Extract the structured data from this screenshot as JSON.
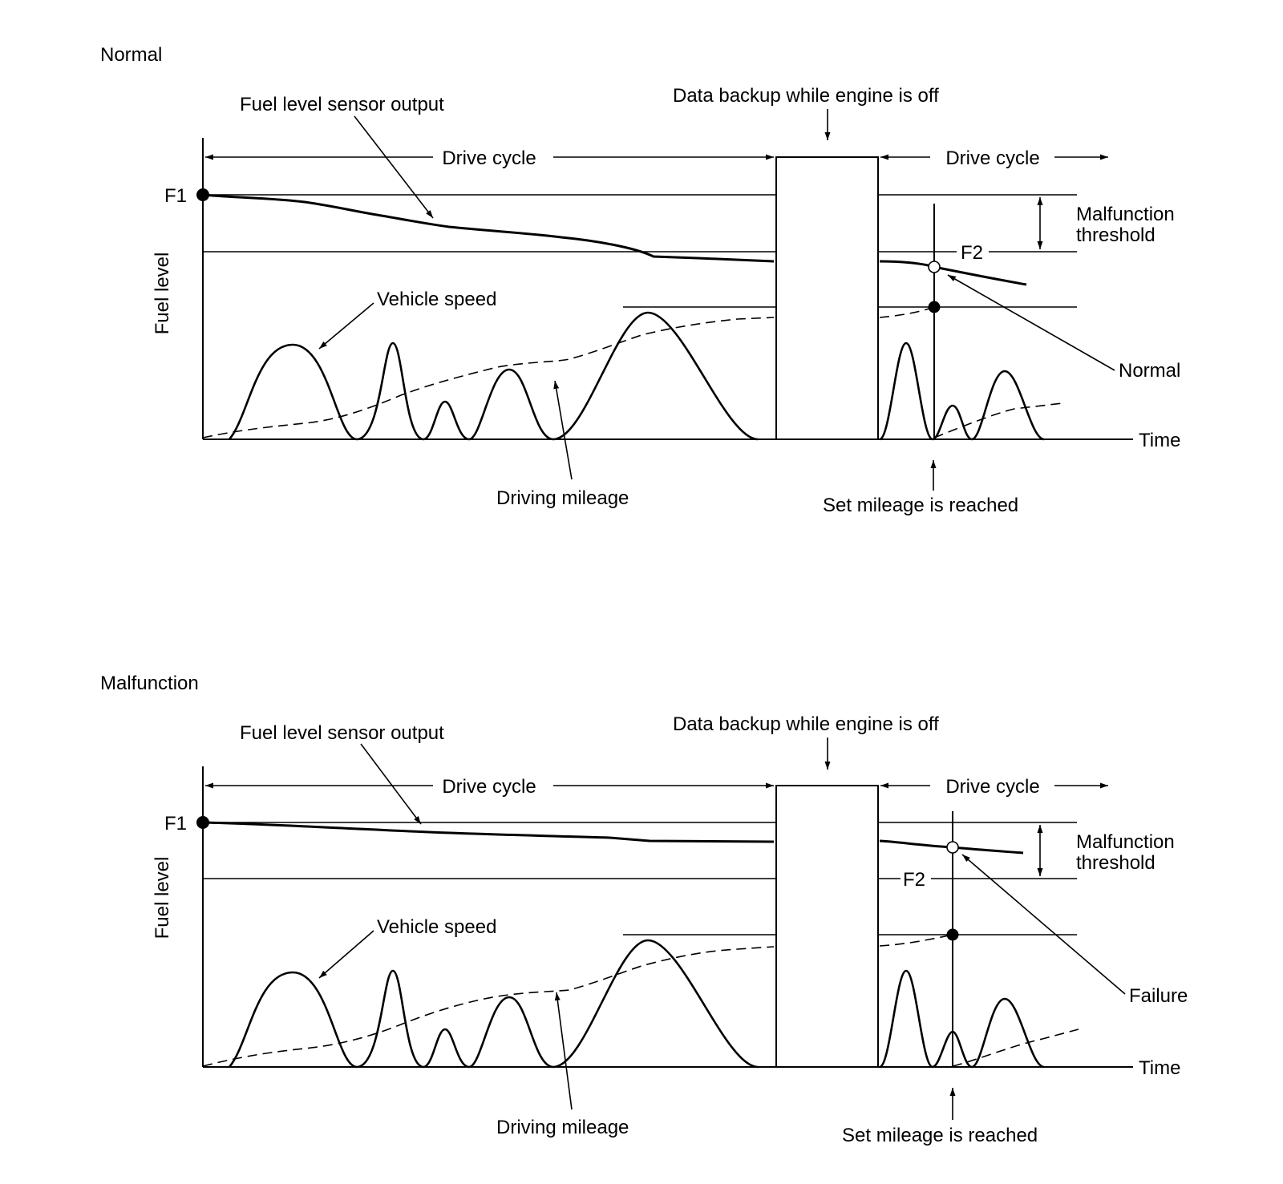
{
  "panels": [
    {
      "id": "normal",
      "heading": "Normal",
      "labels": {
        "sensor_output": "Fuel level sensor output",
        "data_backup": "Data backup while engine is off",
        "drive_cycle_1": "Drive cycle",
        "drive_cycle_2": "Drive cycle",
        "f1": "F1",
        "f2": "F2",
        "threshold_line1": "Malfunction",
        "threshold_line2": "threshold",
        "y_axis": "Fuel level",
        "vehicle_speed": "Vehicle speed",
        "result": "Normal",
        "x_axis": "Time",
        "driving_mileage": "Driving mileage",
        "set_mileage": "Set mileage is reached"
      }
    },
    {
      "id": "malfunction",
      "heading": "Malfunction",
      "labels": {
        "sensor_output": "Fuel level sensor output",
        "data_backup": "Data backup while engine is off",
        "drive_cycle_1": "Drive cycle",
        "drive_cycle_2": "Drive cycle",
        "f1": "F1",
        "f2": "F2",
        "threshold_line1": "Malfunction",
        "threshold_line2": "threshold",
        "y_axis": "Fuel level",
        "vehicle_speed": "Vehicle speed",
        "result": "Failure",
        "x_axis": "Time",
        "driving_mileage": "Driving mileage",
        "set_mileage": "Set mileage is reached"
      }
    }
  ]
}
